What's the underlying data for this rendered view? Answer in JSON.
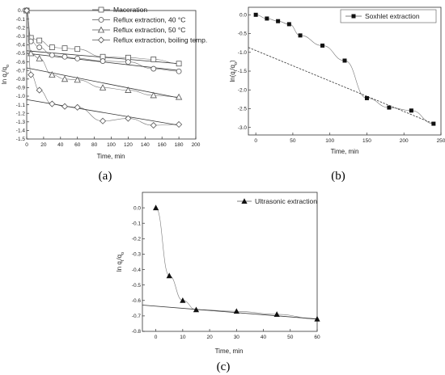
{
  "chart_data": [
    {
      "type": "scatter",
      "panel_label": "(a)",
      "xlabel": "Time, min",
      "ylabel": "ln q_t/q_o",
      "xlim": [
        0,
        200
      ],
      "ylim": [
        -1.5,
        0.0
      ],
      "xticks": [
        0,
        20,
        40,
        60,
        80,
        100,
        120,
        140,
        160,
        180,
        200
      ],
      "yticks": [
        0.0,
        -0.1,
        -0.2,
        -0.3,
        -0.4,
        -0.5,
        -0.6,
        -0.7,
        -0.8,
        -0.9,
        -1.0,
        -1.1,
        -1.2,
        -1.3,
        -1.4,
        -1.5
      ],
      "legend_position": "top-right",
      "series": [
        {
          "name": "Maceration",
          "marker": "square",
          "x": [
            0,
            5,
            15,
            30,
            45,
            60,
            90,
            120,
            150,
            180
          ],
          "y": [
            0.0,
            -0.32,
            -0.35,
            -0.43,
            -0.44,
            -0.45,
            -0.54,
            -0.55,
            -0.57,
            -0.62
          ],
          "fit": [
            [
              0,
              -0.47
            ],
            [
              180,
              -0.62
            ]
          ]
        },
        {
          "name": "Reflux extraction, 40 °C",
          "marker": "circle",
          "x": [
            0,
            5,
            15,
            30,
            45,
            60,
            90,
            120,
            150,
            180
          ],
          "y": [
            0.0,
            -0.36,
            -0.43,
            -0.52,
            -0.54,
            -0.56,
            -0.59,
            -0.6,
            -0.68,
            -0.71
          ],
          "fit": [
            [
              0,
              -0.5
            ],
            [
              180,
              -0.7
            ]
          ]
        },
        {
          "name": "Reflux extraction, 50 °C",
          "marker": "triangle",
          "x": [
            0,
            5,
            15,
            30,
            45,
            60,
            90,
            120,
            150,
            180
          ],
          "y": [
            0.0,
            -0.5,
            -0.56,
            -0.75,
            -0.8,
            -0.81,
            -0.9,
            -0.93,
            -0.99,
            -1.01
          ],
          "fit": [
            [
              0,
              -0.67
            ],
            [
              180,
              -1.02
            ]
          ]
        },
        {
          "name": "Reflux extraction, boiling temp.",
          "marker": "diamond",
          "x": [
            0,
            5,
            15,
            30,
            45,
            60,
            90,
            120,
            150,
            180
          ],
          "y": [
            0.0,
            -0.75,
            -0.93,
            -1.09,
            -1.12,
            -1.13,
            -1.29,
            -1.26,
            -1.34,
            -1.33
          ],
          "fit": [
            [
              0,
              -1.04
            ],
            [
              180,
              -1.34
            ]
          ]
        }
      ]
    },
    {
      "type": "scatter",
      "panel_label": "(b)",
      "xlabel": "Time, min",
      "ylabel": "ln(q_t/q_o)",
      "xlim": [
        -10,
        250
      ],
      "ylim": [
        -3.2,
        0.2
      ],
      "xticks": [
        0,
        50,
        100,
        150,
        200,
        250
      ],
      "yticks": [
        0.0,
        -0.5,
        -1.0,
        -1.5,
        -2.0,
        -2.5,
        -3.0
      ],
      "legend_position": "top-right",
      "series": [
        {
          "name": "Soxhlet extraction",
          "marker": "filled-square",
          "x": [
            0,
            15,
            30,
            45,
            60,
            90,
            120,
            150,
            180,
            210,
            240
          ],
          "y": [
            0.0,
            -0.1,
            -0.17,
            -0.25,
            -0.55,
            -0.82,
            -1.22,
            -2.22,
            -2.47,
            -2.55,
            -2.9
          ],
          "fit": [
            [
              -10,
              -0.87
            ],
            [
              240,
              -2.9
            ]
          ]
        }
      ]
    },
    {
      "type": "scatter",
      "panel_label": "(c)",
      "xlabel": "Time, min",
      "ylabel": "ln q_t/q_o",
      "xlim": [
        -5,
        60
      ],
      "ylim": [
        -0.8,
        0.1
      ],
      "xticks": [
        0,
        10,
        20,
        30,
        40,
        50,
        60
      ],
      "yticks": [
        0.0,
        -0.1,
        -0.2,
        -0.3,
        -0.4,
        -0.5,
        -0.6,
        -0.7,
        -0.8
      ],
      "legend_position": "top-right",
      "series": [
        {
          "name": "Ultrasonic extraction",
          "marker": "filled-triangle",
          "x": [
            0,
            5,
            10,
            15,
            30,
            45,
            60
          ],
          "y": [
            0.0,
            -0.44,
            -0.6,
            -0.66,
            -0.67,
            -0.69,
            -0.72
          ],
          "fit": [
            [
              -5,
              -0.63
            ],
            [
              60,
              -0.72
            ]
          ]
        }
      ]
    }
  ]
}
